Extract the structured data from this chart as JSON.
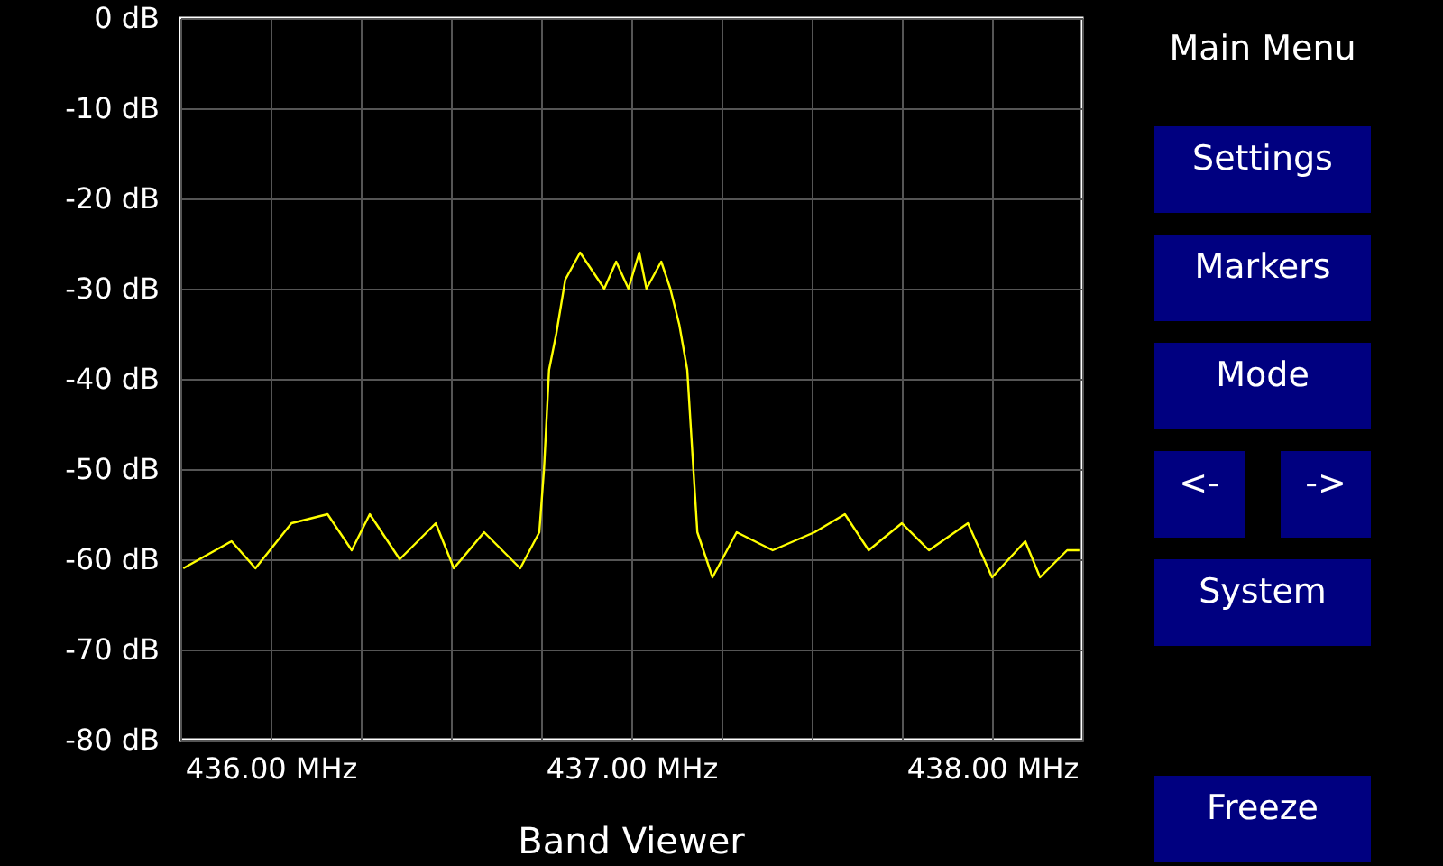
{
  "chart_data": {
    "type": "line",
    "title": "Band Viewer",
    "x": [
      435.758,
      435.892,
      435.958,
      436.058,
      436.158,
      436.225,
      436.275,
      436.358,
      436.458,
      436.508,
      436.592,
      436.692,
      436.745,
      436.758,
      436.772,
      436.792,
      436.817,
      436.858,
      436.925,
      436.958,
      436.992,
      437.022,
      437.042,
      437.083,
      437.108,
      437.133,
      437.155,
      437.172,
      437.183,
      437.225,
      437.292,
      437.392,
      437.508,
      437.592,
      437.658,
      437.75,
      437.825,
      437.933,
      438.0,
      438.092,
      438.133,
      438.208,
      438.242
    ],
    "series": [
      {
        "color": "#ffff00",
        "values": [
          -61,
          -58,
          -61,
          -56,
          -55,
          -59,
          -55,
          -60,
          -56,
          -61,
          -57,
          -61,
          -57,
          -50,
          -39,
          -35,
          -29,
          -26,
          -30,
          -27,
          -30,
          -26,
          -30,
          -27,
          -30,
          -34,
          -39,
          -50,
          -57,
          -62,
          -57,
          -59,
          -57,
          -55,
          -59,
          -56,
          -59,
          -56,
          -62,
          -58,
          -62,
          -59,
          -59
        ]
      }
    ],
    "xlim": [
      435.75,
      438.25
    ],
    "xticks": [
      {
        "value": 435.75,
        "label": null
      },
      {
        "value": 436.0,
        "label": "436.00 MHz"
      },
      {
        "value": 436.25,
        "label": null
      },
      {
        "value": 436.5,
        "label": null
      },
      {
        "value": 436.75,
        "label": null
      },
      {
        "value": 437.0,
        "label": "437.00 MHz"
      },
      {
        "value": 437.25,
        "label": null
      },
      {
        "value": 437.5,
        "label": null
      },
      {
        "value": 437.75,
        "label": null
      },
      {
        "value": 438.0,
        "label": "438.00 MHz"
      },
      {
        "value": 438.25,
        "label": null
      }
    ],
    "ylim": [
      -80,
      0
    ],
    "yticks": [
      {
        "value": -80,
        "label": "-80 dB"
      },
      {
        "value": -70,
        "label": "-70 dB"
      },
      {
        "value": -60,
        "label": "-60 dB"
      },
      {
        "value": -50,
        "label": "-50 dB"
      },
      {
        "value": -40,
        "label": "-40 dB"
      },
      {
        "value": -30,
        "label": "-30 dB"
      },
      {
        "value": -20,
        "label": "-20 dB"
      },
      {
        "value": -10,
        "label": "-10 dB"
      },
      {
        "value": 0,
        "label": "0 dB"
      }
    ],
    "grid": true,
    "annotations": [
      "Main Menu",
      "Settings",
      "Markers",
      "Mode",
      "<-",
      "->",
      "System",
      "Freeze"
    ]
  }
}
